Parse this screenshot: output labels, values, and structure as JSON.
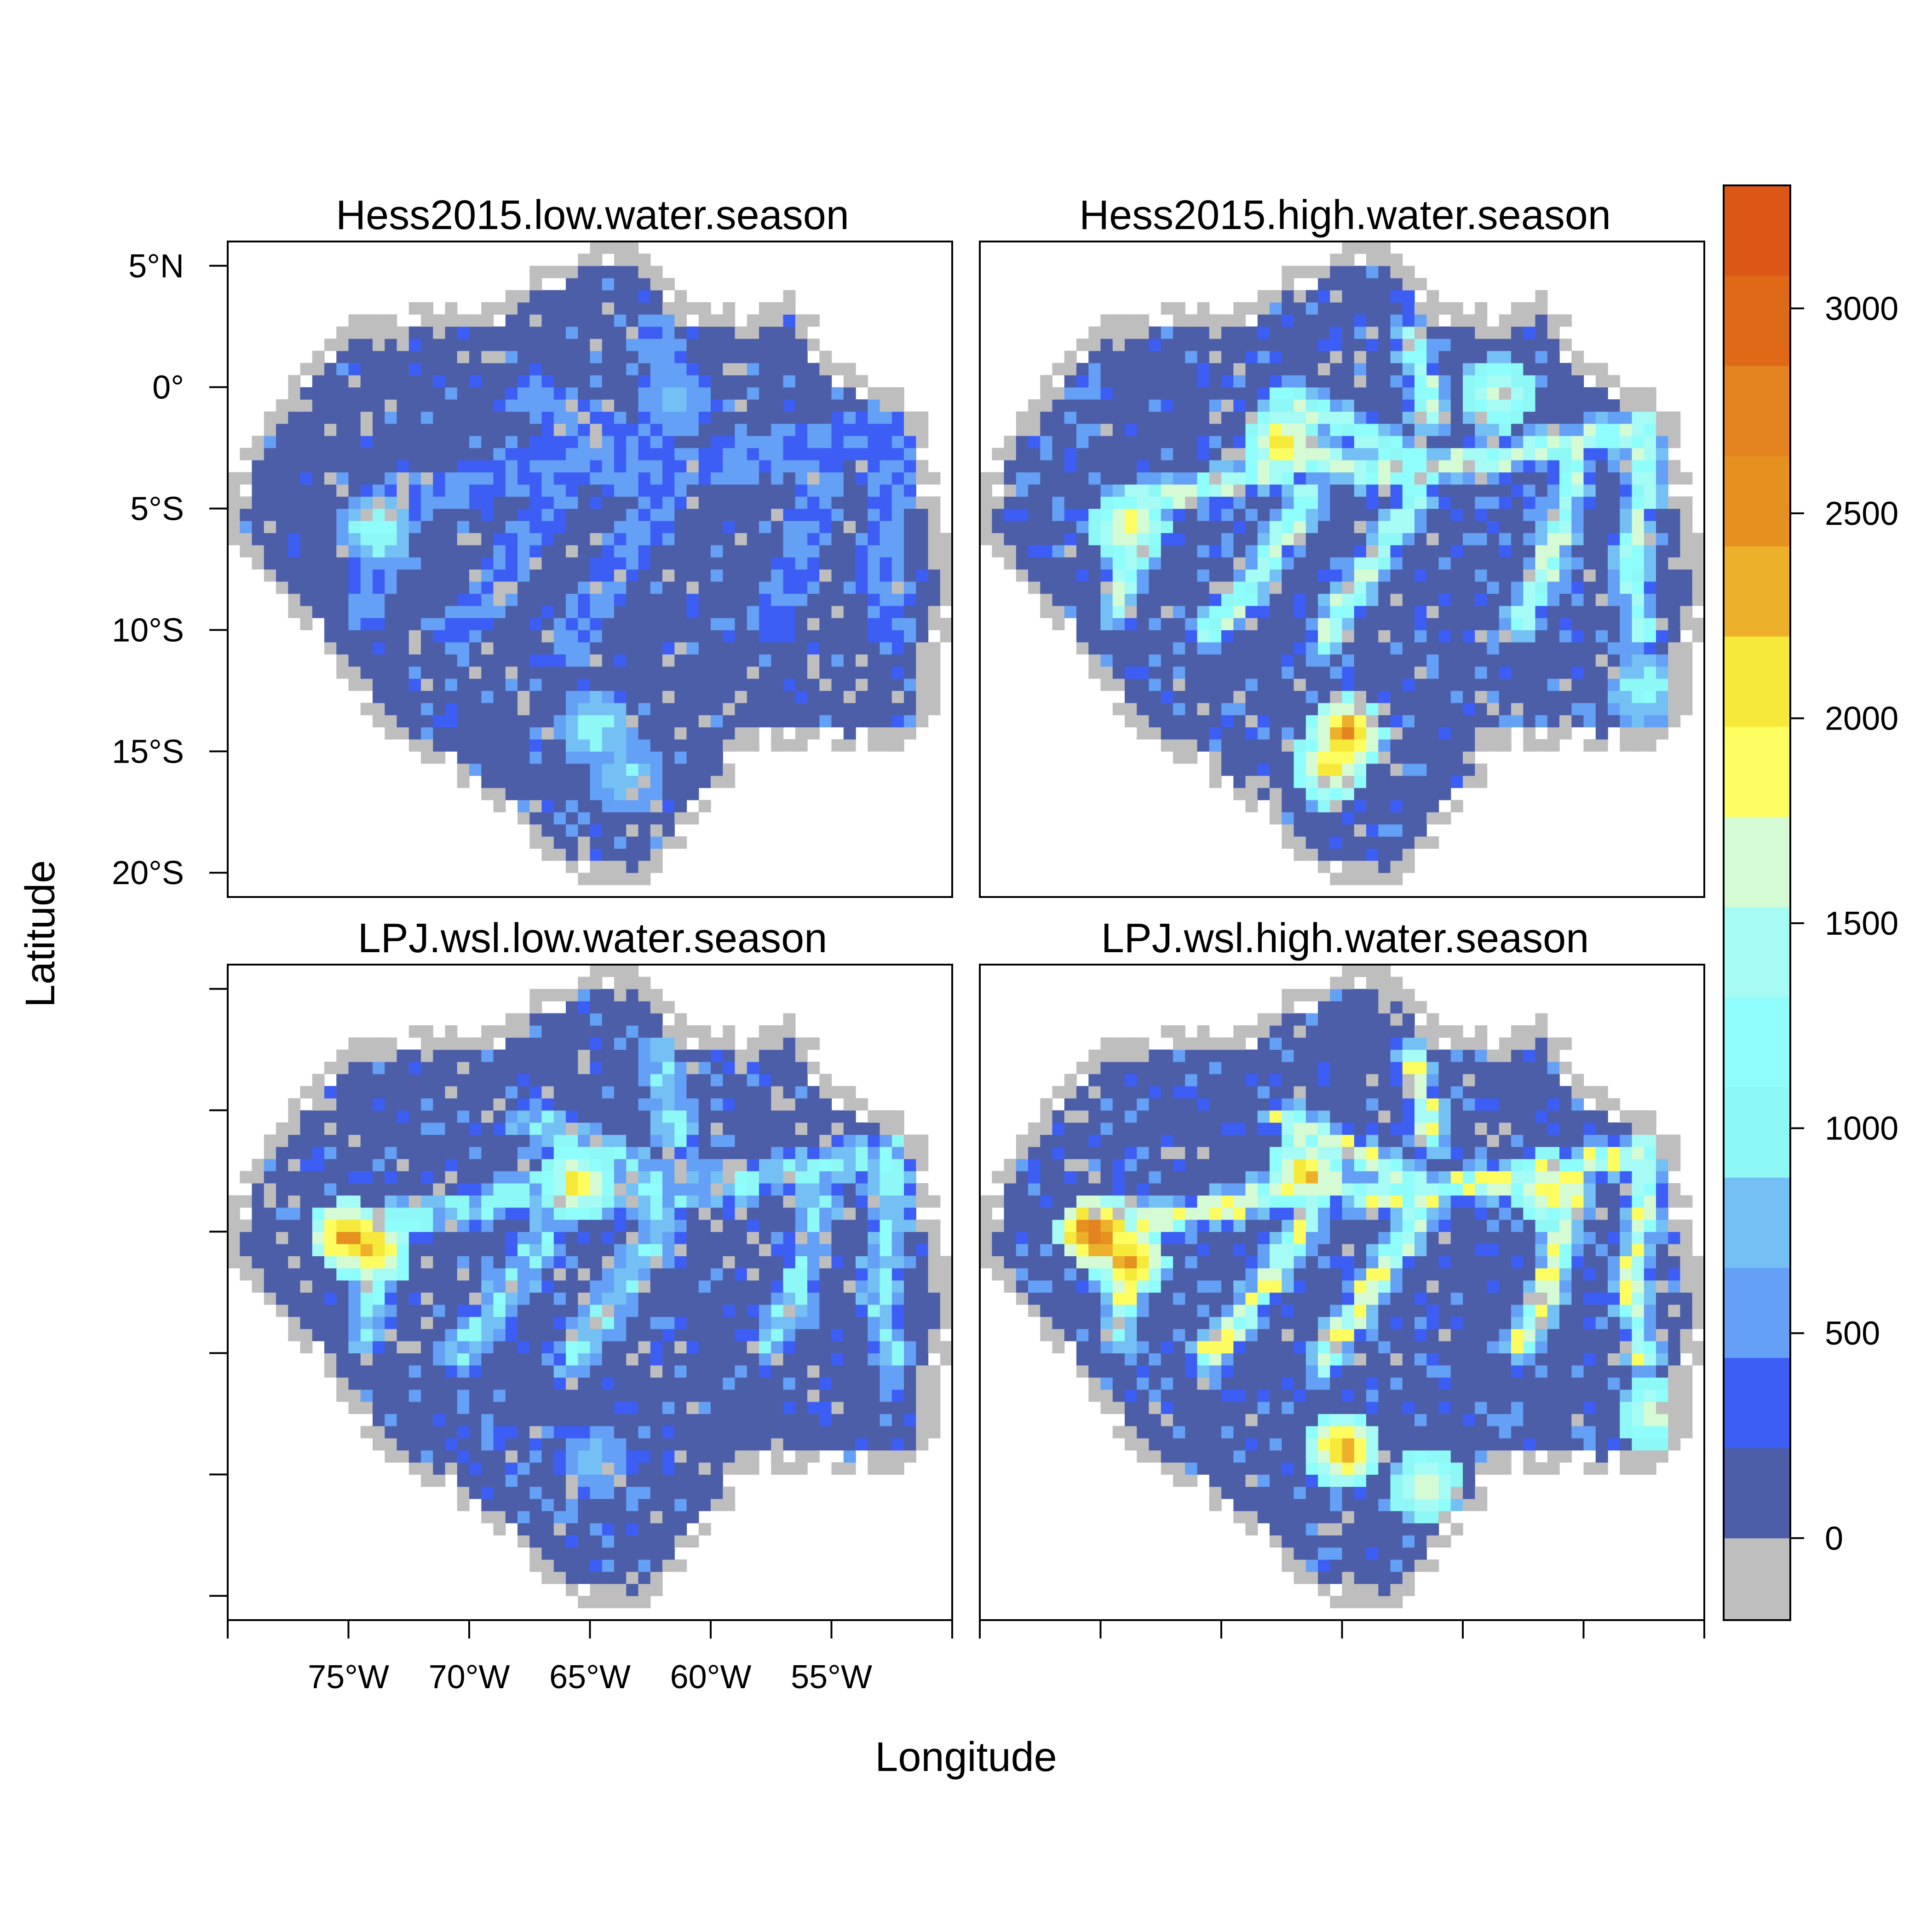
{
  "chart_data": {
    "type": "heatmap",
    "x_axis_title": "Longitude",
    "y_axis_title": "Latitude",
    "x_ticks": [
      {
        "value": -75,
        "label": "75°W"
      },
      {
        "value": -70,
        "label": "70°W"
      },
      {
        "value": -65,
        "label": "65°W"
      },
      {
        "value": -60,
        "label": "60°W"
      },
      {
        "value": -55,
        "label": "55°W"
      }
    ],
    "y_ticks": [
      {
        "value": 5,
        "label": "5°N"
      },
      {
        "value": 0,
        "label": "0°"
      },
      {
        "value": -5,
        "label": "5°S"
      },
      {
        "value": -10,
        "label": "10°S"
      },
      {
        "value": -15,
        "label": "15°S"
      },
      {
        "value": -20,
        "label": "20°S"
      }
    ],
    "xlim": [
      -80,
      -50
    ],
    "ylim": [
      -21,
      6
    ],
    "grid": false,
    "legend": "colorbar, right",
    "colorbar": {
      "range": [
        -200,
        3300
      ],
      "ticks": [
        0,
        500,
        1000,
        1500,
        2000,
        2500,
        3000
      ],
      "breaks": [
        -200,
        0,
        220,
        440,
        660,
        880,
        1100,
        1320,
        1540,
        1760,
        1980,
        2200,
        2420,
        2640,
        2860,
        3080,
        3300
      ],
      "colors": [
        "#bebebe",
        "#4c5ea8",
        "#3d5ef5",
        "#64a0f5",
        "#74c0f4",
        "#8ef8f6",
        "#8ffdfb",
        "#a7fbf5",
        "#d4fbd4",
        "#fdfd60",
        "#f7e93a",
        "#ecb02a",
        "#e5901f",
        "#e48420",
        "#e06918",
        "#dc5615",
        "#d90000"
      ]
    },
    "panels": [
      {
        "title": "Hess2015.low.water.season",
        "season": "low",
        "intensity": 0.45,
        "gray_frac": 0.1,
        "hotspots": [
          {
            "lon": -73.8,
            "lat": -5.8,
            "value": 1400
          },
          {
            "lon": -64.8,
            "lat": -14.0,
            "value": 1250
          },
          {
            "lon": -63.5,
            "lat": -16.0,
            "value": 1050
          },
          {
            "lon": -61.5,
            "lat": -0.5,
            "value": 900
          }
        ]
      },
      {
        "title": "Hess2015.high.water.season",
        "season": "high",
        "intensity": 1.0,
        "gray_frac": 0.09,
        "hotspots": [
          {
            "lon": -64.8,
            "lat": -14.3,
            "value": 2850
          },
          {
            "lon": -65.5,
            "lat": -15.7,
            "value": 2400
          },
          {
            "lon": -73.8,
            "lat": -5.8,
            "value": 2200
          },
          {
            "lon": -67.5,
            "lat": -2.3,
            "value": 2400
          },
          {
            "lon": -58.6,
            "lat": -0.3,
            "value": 1900
          },
          {
            "lon": -52.5,
            "lat": -12.5,
            "value": 1300
          }
        ]
      },
      {
        "title": "LPJ.wsl.low.water.season",
        "season": "low",
        "intensity": 0.85,
        "gray_frac": 0.1,
        "hotspots": [
          {
            "lon": -75.0,
            "lat": -5.2,
            "value": 2850
          },
          {
            "lon": -74.0,
            "lat": -5.8,
            "value": 2600
          },
          {
            "lon": -65.5,
            "lat": -3.0,
            "value": 2300
          },
          {
            "lon": -64.8,
            "lat": -14.5,
            "value": 900
          }
        ]
      },
      {
        "title": "LPJ.wsl.high.water.season",
        "season": "high",
        "intensity": 1.1,
        "gray_frac": 0.07,
        "hotspots": [
          {
            "lon": -75.2,
            "lat": -5.0,
            "value": 3200
          },
          {
            "lon": -73.8,
            "lat": -6.2,
            "value": 2800
          },
          {
            "lon": -65.0,
            "lat": -14.0,
            "value": 2700
          },
          {
            "lon": -66.5,
            "lat": -2.6,
            "value": 2500
          },
          {
            "lon": -56.5,
            "lat": -3.2,
            "value": 2300
          },
          {
            "lon": -52.0,
            "lat": -12.5,
            "value": 2000
          },
          {
            "lon": -61.5,
            "lat": -15.5,
            "value": 2000
          }
        ]
      }
    ]
  }
}
